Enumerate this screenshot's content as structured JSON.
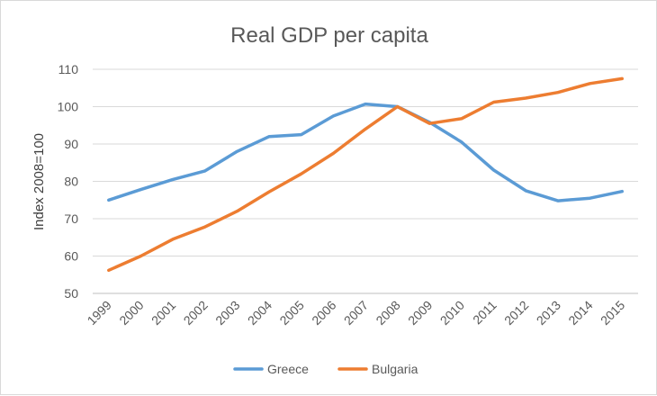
{
  "chart_data": {
    "type": "line",
    "title": "Real GDP per capita",
    "xlabel": "",
    "ylabel": "Index 2008=100",
    "ylim": [
      50,
      110
    ],
    "yticks": [
      50,
      60,
      70,
      80,
      90,
      100,
      110
    ],
    "grid": true,
    "legend_position": "bottom",
    "categories": [
      "1999",
      "2000",
      "2001",
      "2002",
      "2003",
      "2004",
      "2005",
      "2006",
      "2007",
      "2008",
      "2009",
      "2010",
      "2011",
      "2012",
      "2013",
      "2014",
      "2015"
    ],
    "series": [
      {
        "name": "Greece",
        "color": "#5b9bd5",
        "values": [
          75.0,
          77.8,
          80.5,
          82.8,
          88.0,
          92.0,
          92.5,
          97.5,
          100.7,
          100.0,
          95.8,
          90.5,
          83.0,
          77.5,
          74.8,
          75.5,
          77.3
        ]
      },
      {
        "name": "Bulgaria",
        "color": "#ed7d31",
        "values": [
          56.2,
          60.0,
          64.5,
          67.8,
          72.0,
          77.2,
          82.0,
          87.5,
          94.0,
          100.0,
          95.5,
          96.8,
          101.2,
          102.3,
          103.8,
          106.2,
          107.5
        ]
      }
    ]
  }
}
